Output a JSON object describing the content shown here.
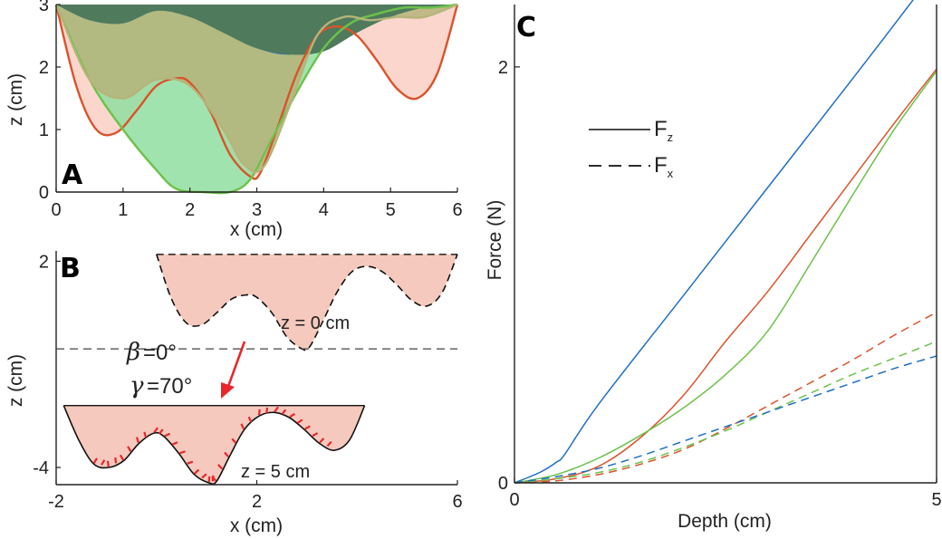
{
  "colors": {
    "blue": "#1f6fc4",
    "red": "#d9532b",
    "green": "#6cc24a",
    "darkgreen": "#4f7a5c",
    "olive": "#b5b47a",
    "pink": "#f9cfc4",
    "lightgreen": "#90dea0",
    "redshade": "#f5c9bd",
    "arrow": "#e8262b"
  },
  "chart_data": [
    {
      "panel": "A",
      "type": "area",
      "xlabel": "x (cm)",
      "ylabel": "z (cm)",
      "xlim": [
        0,
        6
      ],
      "ylim": [
        0,
        3
      ],
      "xticks": [
        "0",
        "1",
        "2",
        "3",
        "4",
        "5",
        "6"
      ],
      "yticks": [
        "0",
        "1",
        "2",
        "3"
      ],
      "series": [
        {
          "color": "red",
          "fill": "pink",
          "x": [
            0,
            0.3,
            0.6,
            0.9,
            1.2,
            1.5,
            1.8,
            2.0,
            2.3,
            2.6,
            2.9,
            3.05,
            3.3,
            3.6,
            3.9,
            4.2,
            4.5,
            4.8,
            5.1,
            5.4,
            5.7,
            6.0
          ],
          "y": [
            3.0,
            1.7,
            1.0,
            0.95,
            1.3,
            1.7,
            1.82,
            1.75,
            1.3,
            0.6,
            0.25,
            0.3,
            1.0,
            1.9,
            2.5,
            2.65,
            2.5,
            2.1,
            1.65,
            1.5,
            1.9,
            3.0
          ]
        },
        {
          "color": "green",
          "fill": "lightgreen",
          "x": [
            0,
            0.5,
            1.0,
            1.5,
            1.8,
            2.2,
            2.6,
            2.9,
            3.2,
            3.6,
            4.0,
            4.4,
            4.8,
            5.2,
            5.6,
            6.0
          ],
          "y": [
            3.0,
            1.8,
            1.0,
            0.35,
            0.05,
            0.0,
            0.0,
            0.2,
            0.8,
            1.6,
            2.3,
            2.7,
            2.85,
            2.95,
            2.95,
            3.0
          ]
        },
        {
          "color": "olive",
          "fill": "olive",
          "x": [
            0,
            0.5,
            1.0,
            1.5,
            2.0,
            2.5,
            2.8,
            3.1,
            3.5,
            3.9,
            4.3,
            4.7,
            5.1,
            5.5,
            6.0
          ],
          "y": [
            3.0,
            1.8,
            1.5,
            1.8,
            1.7,
            1.0,
            0.45,
            0.4,
            1.4,
            2.5,
            2.8,
            2.75,
            2.8,
            2.8,
            3.0
          ]
        },
        {
          "color": "blue",
          "fill": "blue",
          "x": [
            0,
            0.5,
            1.0,
            1.5,
            2.0,
            2.5,
            3.0,
            3.5,
            4.0,
            4.5,
            5.0,
            5.5,
            6.0
          ],
          "y": [
            3.0,
            2.75,
            2.7,
            2.9,
            2.8,
            2.55,
            2.3,
            2.2,
            2.4,
            2.8,
            2.9,
            2.95,
            3.0
          ]
        },
        {
          "color": "darkgreen",
          "fill": "darkgreen",
          "x": [
            0,
            0.5,
            1.0,
            1.5,
            2.0,
            2.5,
            3.0,
            3.5,
            4.0,
            4.5,
            5.0,
            5.5,
            6.0
          ],
          "y": [
            3.0,
            2.75,
            2.7,
            2.9,
            2.8,
            2.55,
            2.3,
            2.2,
            2.25,
            2.55,
            2.8,
            2.95,
            3.0
          ]
        }
      ]
    },
    {
      "panel": "B",
      "type": "area",
      "xlabel": "x (cm)",
      "ylabel": "z (cm)",
      "xlim": [
        -2,
        6
      ],
      "ylim": [
        -4.5,
        2.3
      ],
      "xticks": [
        "-2",
        "2",
        "6"
      ],
      "yticks": [
        "2",
        "-4"
      ],
      "annotations": {
        "top_label": "z = 0 cm",
        "bottom_label": "z = 5 cm",
        "beta_sym": "β",
        "beta_val": "=0°",
        "gamma_sym": "γ",
        "gamma_val": "=70°"
      },
      "series": [
        {
          "name": "z = 0 cm",
          "style": "dashed",
          "x": [
            0,
            0.3,
            0.6,
            0.9,
            1.2,
            1.5,
            1.8,
            2.0,
            2.3,
            2.6,
            2.9,
            3.05,
            3.3,
            3.6,
            3.9,
            4.2,
            4.5,
            4.8,
            5.1,
            5.4,
            5.7,
            6.0
          ],
          "y": [
            2.2,
            0.9,
            0.2,
            0.15,
            0.5,
            0.9,
            1.02,
            0.95,
            0.5,
            -0.2,
            -0.55,
            -0.5,
            0.2,
            1.1,
            1.7,
            1.85,
            1.7,
            1.3,
            0.85,
            0.7,
            1.1,
            2.2
          ]
        },
        {
          "name": "z = 5 cm",
          "style": "solid",
          "x": [
            -1.85,
            -1.55,
            -1.25,
            -0.95,
            -0.65,
            -0.35,
            -0.05,
            0.15,
            0.45,
            0.75,
            1.05,
            1.2,
            1.45,
            1.75,
            2.05,
            2.35,
            2.65,
            2.95,
            3.25,
            3.55,
            3.85,
            4.15
          ],
          "y": [
            -2.2,
            -3.2,
            -3.9,
            -4.0,
            -3.8,
            -3.3,
            -3.0,
            -3.1,
            -3.6,
            -4.2,
            -4.45,
            -4.4,
            -3.7,
            -2.9,
            -2.5,
            -2.4,
            -2.55,
            -2.9,
            -3.3,
            -3.5,
            -3.2,
            -2.2
          ]
        }
      ],
      "baseline_dashed_z": -0.55
    },
    {
      "panel": "C",
      "type": "line",
      "xlabel": "Depth (cm)",
      "ylabel": "Force (N)",
      "xlim": [
        0,
        5
      ],
      "ylim": [
        0,
        2.3
      ],
      "xticks": [
        "0",
        "5"
      ],
      "yticks": [
        "0",
        "2"
      ],
      "legend": [
        {
          "label": "F",
          "sub": "z",
          "style": "solid"
        },
        {
          "label": "F",
          "sub": "x",
          "style": "dashed"
        }
      ],
      "series": [
        {
          "color": "blue",
          "style": "solid",
          "x": [
            0,
            0.3,
            0.5,
            0.6,
            1.0,
            2.0,
            3.0,
            4.0,
            5.0
          ],
          "y": [
            0,
            0.05,
            0.1,
            0.14,
            0.38,
            0.9,
            1.42,
            1.94,
            2.47
          ]
        },
        {
          "color": "red",
          "style": "solid",
          "x": [
            0,
            0.5,
            1.0,
            1.5,
            2.0,
            2.5,
            3.0,
            3.5,
            4.0,
            4.5,
            5.0
          ],
          "y": [
            0,
            0.02,
            0.08,
            0.22,
            0.42,
            0.68,
            0.92,
            1.19,
            1.46,
            1.73,
            1.99
          ]
        },
        {
          "color": "green",
          "style": "solid",
          "x": [
            0,
            0.5,
            1.0,
            1.5,
            2.0,
            2.5,
            3.0,
            3.5,
            4.0,
            4.5,
            5.0
          ],
          "y": [
            0,
            0.04,
            0.12,
            0.23,
            0.36,
            0.52,
            0.73,
            1.05,
            1.38,
            1.7,
            1.98
          ]
        },
        {
          "color": "red",
          "style": "dashed",
          "x": [
            0,
            0.5,
            1.0,
            1.5,
            2.0,
            2.5,
            3.0,
            3.5,
            4.0,
            4.5,
            5.0
          ],
          "y": [
            0,
            0.01,
            0.04,
            0.09,
            0.16,
            0.26,
            0.37,
            0.48,
            0.59,
            0.71,
            0.82
          ]
        },
        {
          "color": "green",
          "style": "dashed",
          "x": [
            0,
            0.5,
            1.0,
            1.5,
            2.0,
            2.5,
            3.0,
            3.5,
            4.0,
            4.5,
            5.0
          ],
          "y": [
            0,
            0.02,
            0.05,
            0.1,
            0.17,
            0.25,
            0.34,
            0.43,
            0.52,
            0.6,
            0.68
          ]
        },
        {
          "color": "blue",
          "style": "dashed",
          "x": [
            0,
            0.5,
            1.0,
            1.5,
            2.0,
            2.5,
            3.0,
            3.5,
            4.0,
            4.5,
            5.0
          ],
          "y": [
            0,
            0.03,
            0.07,
            0.13,
            0.2,
            0.27,
            0.34,
            0.41,
            0.48,
            0.55,
            0.61
          ]
        }
      ]
    }
  ]
}
